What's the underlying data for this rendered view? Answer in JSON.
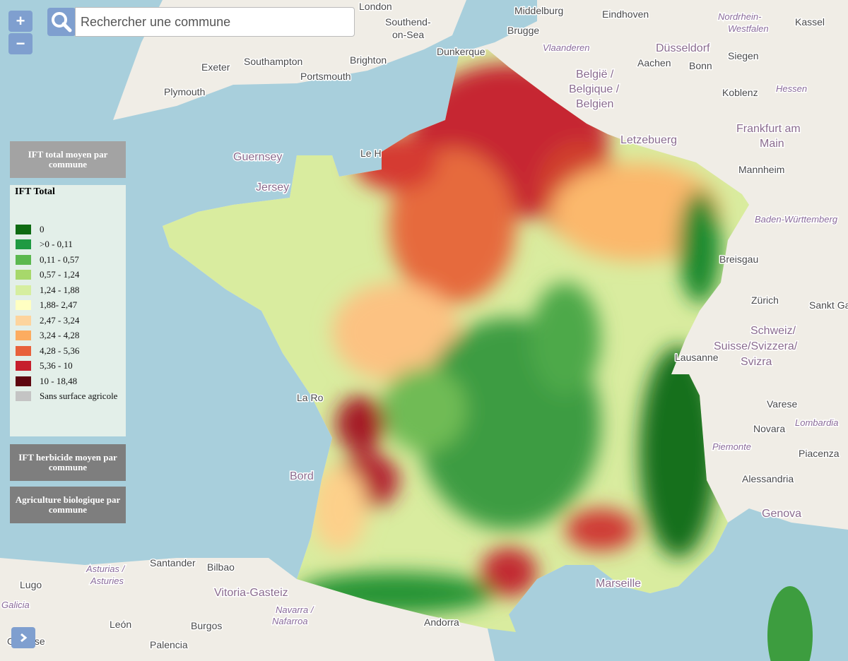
{
  "controls": {
    "zoom_in": "+",
    "zoom_out": "−",
    "search_placeholder": "Rechercher une commune"
  },
  "layers": [
    "IFT total moyen par commune",
    "IFT herbicide moyen par commune",
    "Agriculture biologique par commune"
  ],
  "legend": {
    "title": "IFT Total",
    "items": [
      {
        "label": "0",
        "color": "#0e6b12"
      },
      {
        "label": ">0 - 0,11",
        "color": "#1f9a42"
      },
      {
        "label": "0,11 - 0,57",
        "color": "#5cb84f"
      },
      {
        "label": "0,57 - 1,24",
        "color": "#a7d86b"
      },
      {
        "label": "1,24 - 1,88",
        "color": "#d6eea0"
      },
      {
        "label": "1,88- 2,47",
        "color": "#ffffc2"
      },
      {
        "label": "2,47 - 3,24",
        "color": "#fdd49e"
      },
      {
        "label": "3,24 - 4,28",
        "color": "#fcac60"
      },
      {
        "label": "4,28 - 5,36",
        "color": "#e8613b"
      },
      {
        "label": "5,36 - 10",
        "color": "#c61f2d"
      },
      {
        "label": "10 - 18,48",
        "color": "#5e0610"
      },
      {
        "label": "Sans surface agricole",
        "color": "#c4c4c4"
      }
    ]
  },
  "map_labels": [
    "London",
    "Southend-",
    "on-Sea",
    "Middelburg",
    "Eindhoven",
    "Nordrhein-",
    "Westfalen",
    "Kassel",
    "Brugge",
    "Vlaanderen",
    "Düsseldorf",
    "Siegen",
    "Exeter",
    "Southampton",
    "Brighton",
    "Portsmouth",
    "Dunkerque",
    "Aachen",
    "Bonn",
    "België /",
    "Belgique /",
    "Belgien",
    "Plymouth",
    "Koblenz",
    "Hessen",
    "Frankfurt am",
    "Main",
    "Letzebuerg",
    "Guernsey",
    "Le H",
    "Jersey",
    "Mannheim",
    "Baden-Württemberg",
    "Breisgau",
    "Zürich",
    "Sankt Gall",
    "Schweiz/",
    "Suisse/Svizzera/",
    "Svizra",
    "Lausanne",
    "Varese",
    "Lombardia",
    "Novara",
    "Piemonte",
    "Piacenza",
    "Alessandria",
    "Genova",
    "La Ro",
    "Bord",
    "Marseille",
    "Santander",
    "Bilbao",
    "Asturias /",
    "Asturies",
    "Lugo",
    "Galicia",
    "Vitoria-Gasteiz",
    "Navarra /",
    "Nafarroa",
    "León",
    "Burgos",
    "Palencia",
    "Andorra",
    "Ourense"
  ]
}
